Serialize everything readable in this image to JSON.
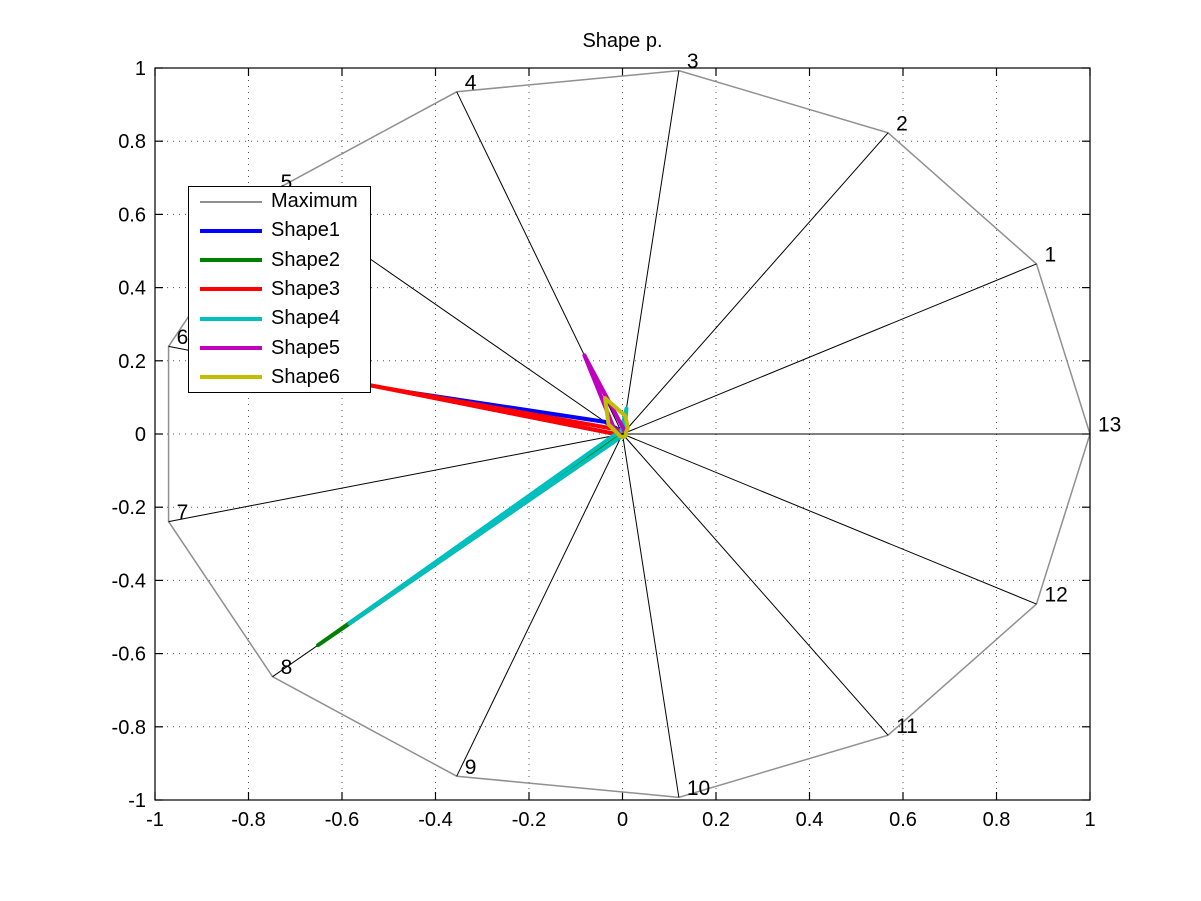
{
  "window": {
    "background": "#ffffff"
  },
  "axes": {
    "x_ticks": [
      "-1",
      "-0.8",
      "-0.6",
      "-0.4",
      "-0.2",
      "0",
      "0.2",
      "0.4",
      "0.6",
      "0.8",
      "1"
    ],
    "y_ticks": [
      "1",
      "0.8",
      "0.6",
      "0.4",
      "0.2",
      "0",
      "-0.2",
      "-0.4",
      "-0.6",
      "-0.8",
      "-1"
    ]
  },
  "chart_data": {
    "type": "radar",
    "title": "Shape p.",
    "n_spokes": 13,
    "categories": [
      "1",
      "2",
      "3",
      "4",
      "5",
      "6",
      "7",
      "8",
      "9",
      "10",
      "11",
      "12",
      "13"
    ],
    "spoke_angle_step_deg": 27.692,
    "xlim": [
      -1,
      1
    ],
    "ylim": [
      -1,
      1
    ],
    "grid": true,
    "grid_style": "dotted",
    "legend_position": "upper-left",
    "series": [
      {
        "name": "Maximum",
        "color": "#909090",
        "values": [
          1,
          1,
          1,
          1,
          1,
          1,
          1,
          1,
          1,
          1,
          1,
          1,
          1
        ]
      },
      {
        "name": "Shape1",
        "color": "#0000ff",
        "values": [
          0.008,
          0.008,
          0.008,
          0.008,
          0.05,
          0.5,
          0.008,
          0.008,
          0.008,
          0.008,
          0.008,
          0.008,
          0.008
        ]
      },
      {
        "name": "Shape2",
        "color": "#008000",
        "values": [
          0.008,
          0.008,
          0.008,
          0.008,
          0.008,
          0.008,
          0.015,
          0.87,
          0.008,
          0.008,
          0.008,
          0.008,
          0.008
        ]
      },
      {
        "name": "Shape3",
        "color": "#ff0000",
        "values": [
          0.008,
          0.008,
          0.008,
          0.008,
          0.02,
          0.555,
          0.008,
          0.008,
          0.008,
          0.008,
          0.008,
          0.008,
          0.008
        ]
      },
      {
        "name": "Shape4",
        "color": "#00bfbf",
        "values": [
          0.008,
          0.008,
          0.07,
          0.008,
          0.008,
          0.008,
          0.02,
          0.78,
          0.008,
          0.008,
          0.008,
          0.008,
          0.008
        ]
      },
      {
        "name": "Shape5",
        "color": "#bf00bf",
        "values": [
          0.008,
          0.008,
          0.015,
          0.23,
          0.025,
          0.008,
          0.008,
          0.008,
          0.008,
          0.008,
          0.008,
          0.008,
          0.008
        ]
      },
      {
        "name": "Shape6",
        "color": "#bfbf00",
        "values": [
          0.008,
          0.02,
          0.05,
          0.105,
          0.04,
          0.012,
          0.008,
          0.008,
          0.008,
          0.008,
          0.008,
          0.008,
          0.008
        ]
      }
    ]
  }
}
